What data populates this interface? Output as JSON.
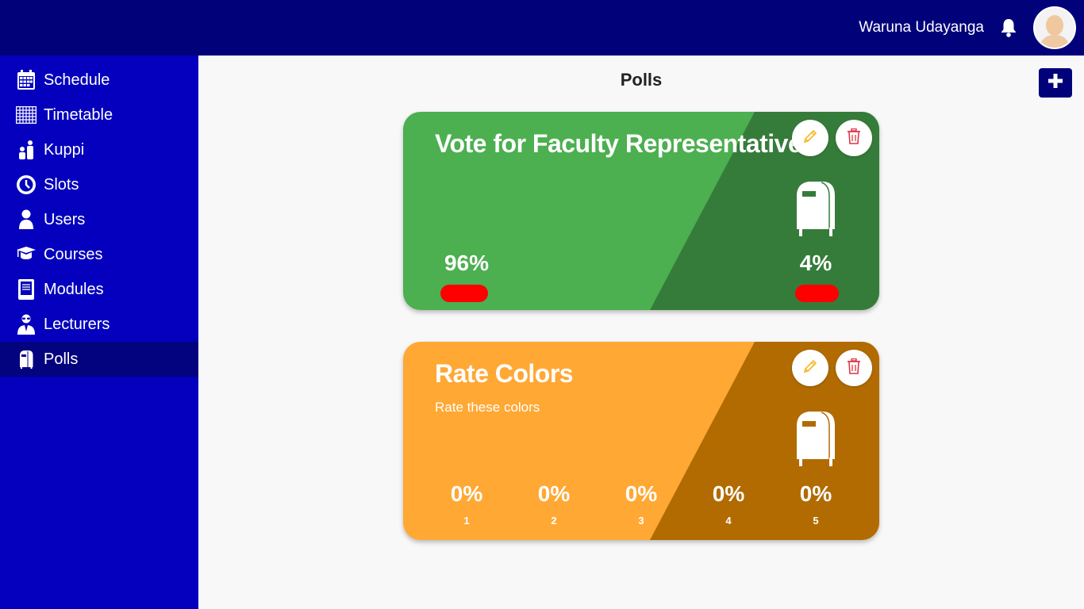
{
  "header": {
    "user_name": "Waruna Udayanga"
  },
  "sidebar": {
    "items": [
      {
        "label": "Schedule",
        "icon": "calendar-icon"
      },
      {
        "label": "Timetable",
        "icon": "grid-icon"
      },
      {
        "label": "Kuppi",
        "icon": "people-icon"
      },
      {
        "label": "Slots",
        "icon": "clock-icon"
      },
      {
        "label": "Users",
        "icon": "user-icon"
      },
      {
        "label": "Courses",
        "icon": "graduation-cap-icon"
      },
      {
        "label": "Modules",
        "icon": "book-icon"
      },
      {
        "label": "Lecturers",
        "icon": "lecturer-icon"
      },
      {
        "label": "Polls",
        "icon": "mailbox-icon",
        "active": true
      }
    ]
  },
  "page": {
    "title": "Polls"
  },
  "colors": {
    "topbar": "#01017a",
    "sidebar": "#0400bd",
    "sidebar_active": "#03037f",
    "poll1_light": "#4caf50",
    "poll1_dark": "#357c3a",
    "poll2_light": "#ffa834",
    "poll2_dark": "#b26b00",
    "edit_icon": "#f5b81c",
    "delete_icon": "#dc3545"
  },
  "polls": [
    {
      "title": "Vote for Faculty Representative",
      "description": "",
      "options": [
        {
          "percent": "96%",
          "label": ""
        },
        {
          "percent": "4%",
          "label": ""
        }
      ]
    },
    {
      "title": "Rate Colors",
      "description": "Rate these colors",
      "options": [
        {
          "percent": "0%",
          "label": "1"
        },
        {
          "percent": "0%",
          "label": "2"
        },
        {
          "percent": "0%",
          "label": "3"
        },
        {
          "percent": "0%",
          "label": "4"
        },
        {
          "percent": "0%",
          "label": "5"
        }
      ]
    }
  ]
}
